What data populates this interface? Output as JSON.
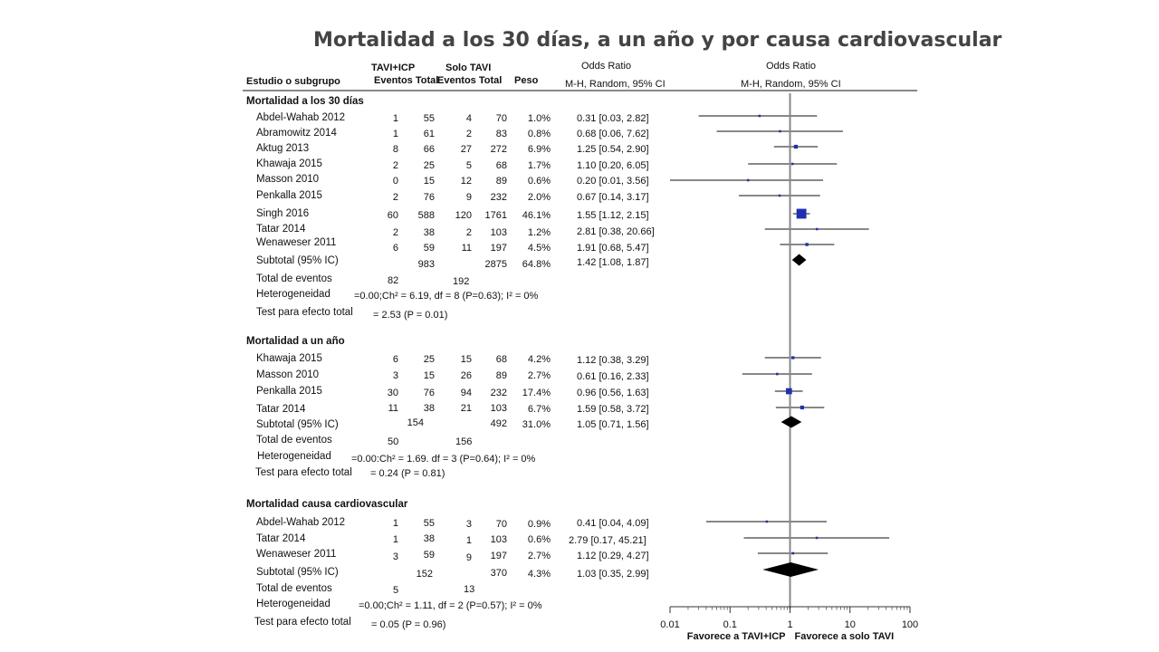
{
  "title": "Mortalidad a los 30 días, a un año y por causa cardiovascular",
  "headers": {
    "study": "Estudio o subgrupo",
    "group1": "TAVI+ICP",
    "group2": "Solo TAVI",
    "events_total1": "Eventos Total",
    "events_total2": "Eventos Total",
    "weight": "Peso",
    "or_title_left": "Odds Ratio",
    "or_method_left": "M-H, Random, 95% CI",
    "or_title_right": "Odds Ratio",
    "or_method_right": "M-H, Random, 95% CI"
  },
  "sections": [
    {
      "title": "Mortalidad a los 30 días",
      "studies": [
        {
          "name": "Abdel-Wahab 2012",
          "e1": "1",
          "n1": "55",
          "e2": "4",
          "n2": "70",
          "w": "1.0%",
          "ci": "0.31 [0.03, 2.82]"
        },
        {
          "name": "Abramowitz 2014",
          "e1": "1",
          "n1": "61",
          "e2": "2",
          "n2": "83",
          "w": "0.8%",
          "ci": "0.68 [0.06, 7.62]"
        },
        {
          "name": "Aktug 2013",
          "e1": "8",
          "n1": "66",
          "e2": "27",
          "n2": "272",
          "w": "6.9%",
          "ci": "1.25 [0.54, 2.90]"
        },
        {
          "name": "Khawaja 2015",
          "e1": "2",
          "n1": "25",
          "e2": "5",
          "n2": "68",
          "w": "1.7%",
          "ci": "1.10 [0.20, 6.05]"
        },
        {
          "name": "Masson 2010",
          "e1": "0",
          "n1": "15",
          "e2": "12",
          "n2": "89",
          "w": "0.6%",
          "ci": "0.20 [0.01, 3.56]"
        },
        {
          "name": "Penkalla 2015",
          "e1": "2",
          "n1": "76",
          "e2": "9",
          "n2": "232",
          "w": "2.0%",
          "ci": "0.67 [0.14, 3.17]"
        },
        {
          "name": "Singh 2016",
          "e1": "60",
          "n1": "588",
          "e2": "120",
          "n2": "1761",
          "w": "46.1%",
          "ci": "1.55 [1.12, 2.15]"
        },
        {
          "name": "Tatar 2014",
          "e1": "2",
          "n1": "38",
          "e2": "2",
          "n2": "103",
          "w": "1.2%",
          "ci": "2.81 [0.38, 20.66]"
        },
        {
          "name": "Wenaweser 2011",
          "e1": "6",
          "n1": "59",
          "e2": "11",
          "n2": "197",
          "w": "4.5%",
          "ci": "1.91 [0.68, 5.47]"
        }
      ],
      "subtotal": {
        "label": "Subtotal (95% IC)",
        "n1": "983",
        "n2": "2875",
        "w": "64.8%",
        "ci": "1.42 [1.08, 1.87]"
      },
      "events": {
        "label": "Total de eventos",
        "e1": "82",
        "e2": "192"
      },
      "heterogeneity": {
        "label": "Heterogeneidad",
        "value": "=0.00;Ch² = 6.19, df = 8 (P=0.63); I² = 0%"
      },
      "test": {
        "label": "Test para efecto total",
        "value": "= 2.53 (P = 0.01)"
      }
    },
    {
      "title": "Mortalidad a un año",
      "studies": [
        {
          "name": "Khawaja 2015",
          "e1": "6",
          "n1": "25",
          "e2": "15",
          "n2": "68",
          "w": "4.2%",
          "ci": "1.12 [0.38, 3.29]"
        },
        {
          "name": "Masson 2010",
          "e1": "3",
          "n1": "15",
          "e2": "26",
          "n2": "89",
          "w": "2.7%",
          "ci": "0.61 [0.16, 2.33]"
        },
        {
          "name": "Penkalla 2015",
          "e1": "30",
          "n1": "76",
          "e2": "94",
          "n2": "232",
          "w": "17.4%",
          "ci": "0.96 [0.56, 1.63]"
        },
        {
          "name": "Tatar 2014",
          "e1": "11",
          "n1": "38",
          "e2": "21",
          "n2": "103",
          "w": "6.7%",
          "ci": "1.59 [0.58, 3.72]"
        }
      ],
      "subtotal": {
        "label": "Subtotal (95% IC)",
        "n1": "154",
        "n2": "492",
        "w": "31.0%",
        "ci": "1.05 [0.71, 1.56]"
      },
      "events": {
        "label": "Total de eventos",
        "e1": "50",
        "e2": "156"
      },
      "heterogeneity": {
        "label": "Heterogeneidad",
        "value": "=0.00:Ch² = 1.69. df = 3 (P=0.64); I² = 0%"
      },
      "test": {
        "label": "Test para efecto total",
        "value": "= 0.24 (P = 0.81)"
      }
    },
    {
      "title": "Mortalidad causa cardiovascular",
      "studies": [
        {
          "name": "Abdel-Wahab 2012",
          "e1": "1",
          "n1": "55",
          "e2": "3",
          "n2": "70",
          "w": "0.9%",
          "ci": "0.41 [0.04, 4.09]"
        },
        {
          "name": "Tatar 2014",
          "e1": "1",
          "n1": "38",
          "e2": "1",
          "n2": "103",
          "w": "0.6%",
          "ci": "2.79 [0.17, 45.21]"
        },
        {
          "name": "Wenaweser 2011",
          "e1": "3",
          "n1": "59",
          "e2": "9",
          "n2": "197",
          "w": "2.7%",
          "ci": "1.12 [0.29, 4.27]"
        }
      ],
      "subtotal": {
        "label": "Subtotal (95% IC)",
        "n1": "152",
        "n2": "370",
        "w": "4.3%",
        "ci": "1.03 [0.35, 2.99]"
      },
      "events": {
        "label": "Total de eventos",
        "e1": "5",
        "e2": "13"
      },
      "heterogeneity": {
        "label": "Heterogeneidad",
        "value": "=0.00;Ch² = 1.11, df = 2 (P=0.57); I² = 0%"
      },
      "test": {
        "label": "Test para efecto total",
        "value": "= 0.05 (P = 0.96)"
      }
    }
  ],
  "axis": {
    "ticks": [
      "0.01",
      "0.1",
      "1",
      "10",
      "100"
    ],
    "favours_left": "Favorece a TAVI+ICP",
    "favours_right": "Favorece a solo TAVI"
  },
  "colors": {
    "square": "#1f2fb0",
    "diamond": "#000000",
    "line": "#888888"
  },
  "chart_data": {
    "type": "forest",
    "scale": "log",
    "xlim": [
      0.01,
      100
    ],
    "null_value": 1,
    "series": [
      {
        "name": "Mortalidad a los 30 días",
        "points": [
          {
            "or": 0.31,
            "lo": 0.03,
            "hi": 2.82,
            "weight": 1.0
          },
          {
            "or": 0.68,
            "lo": 0.06,
            "hi": 7.62,
            "weight": 0.8
          },
          {
            "or": 1.25,
            "lo": 0.54,
            "hi": 2.9,
            "weight": 6.9
          },
          {
            "or": 1.1,
            "lo": 0.2,
            "hi": 6.05,
            "weight": 1.7
          },
          {
            "or": 0.2,
            "lo": 0.01,
            "hi": 3.56,
            "weight": 0.6
          },
          {
            "or": 0.67,
            "lo": 0.14,
            "hi": 3.17,
            "weight": 2.0
          },
          {
            "or": 1.55,
            "lo": 1.12,
            "hi": 2.15,
            "weight": 46.1
          },
          {
            "or": 2.81,
            "lo": 0.38,
            "hi": 20.66,
            "weight": 1.2
          },
          {
            "or": 1.91,
            "lo": 0.68,
            "hi": 5.47,
            "weight": 4.5
          }
        ],
        "pooled": {
          "or": 1.42,
          "lo": 1.08,
          "hi": 1.87
        }
      },
      {
        "name": "Mortalidad a un año",
        "points": [
          {
            "or": 1.12,
            "lo": 0.38,
            "hi": 3.29,
            "weight": 4.2
          },
          {
            "or": 0.61,
            "lo": 0.16,
            "hi": 2.33,
            "weight": 2.7
          },
          {
            "or": 0.96,
            "lo": 0.56,
            "hi": 1.63,
            "weight": 17.4
          },
          {
            "or": 1.59,
            "lo": 0.58,
            "hi": 3.72,
            "weight": 6.7
          }
        ],
        "pooled": {
          "or": 1.05,
          "lo": 0.71,
          "hi": 1.56
        }
      },
      {
        "name": "Mortalidad causa cardiovascular",
        "points": [
          {
            "or": 0.41,
            "lo": 0.04,
            "hi": 4.09,
            "weight": 0.9
          },
          {
            "or": 2.79,
            "lo": 0.17,
            "hi": 45.21,
            "weight": 0.6
          },
          {
            "or": 1.12,
            "lo": 0.29,
            "hi": 4.27,
            "weight": 2.7
          }
        ],
        "pooled": {
          "or": 1.03,
          "lo": 0.35,
          "hi": 2.99
        }
      }
    ]
  }
}
